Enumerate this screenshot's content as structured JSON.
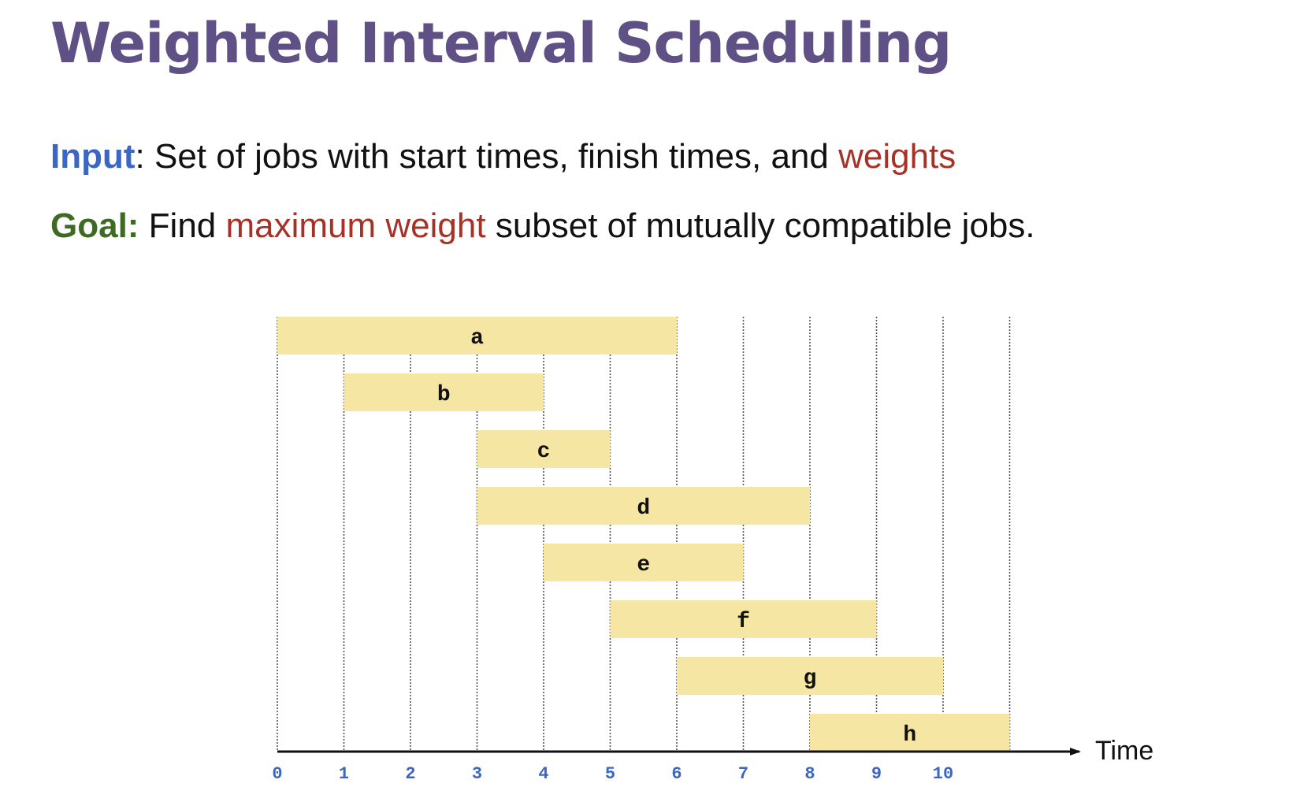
{
  "colors": {
    "title": "#5f5185",
    "input": "#3b67c2",
    "goal": "#3e6b22",
    "emphasis": "#a63126",
    "bar": "#f6e6a3",
    "axis": "#111111",
    "grid": "#555555",
    "tick": "#3b67c2"
  },
  "title": "Weighted Interval Scheduling",
  "input_line": {
    "label": "Input",
    "text": ": Set of jobs with start times, finish times, and ",
    "emphasis": "weights"
  },
  "goal_line": {
    "label": "Goal:",
    "pre": " Find ",
    "emphasis": "maximum weight",
    "post": " subset of mutually compatible jobs."
  },
  "chart_data": {
    "type": "gantt",
    "xlabel": "Time",
    "ticks": [
      "0",
      "1",
      "2",
      "3",
      "4",
      "5",
      "6",
      "7",
      "8",
      "9",
      "10"
    ],
    "xlim": [
      0,
      11
    ],
    "grid": "vertical dotted lines at integer times 0–11",
    "jobs": [
      {
        "name": "a",
        "start": 0,
        "finish": 6
      },
      {
        "name": "b",
        "start": 1,
        "finish": 4
      },
      {
        "name": "c",
        "start": 3,
        "finish": 5
      },
      {
        "name": "d",
        "start": 3,
        "finish": 8
      },
      {
        "name": "e",
        "start": 4,
        "finish": 7
      },
      {
        "name": "f",
        "start": 5,
        "finish": 9
      },
      {
        "name": "g",
        "start": 6,
        "finish": 10
      },
      {
        "name": "h",
        "start": 8,
        "finish": 11
      }
    ]
  }
}
